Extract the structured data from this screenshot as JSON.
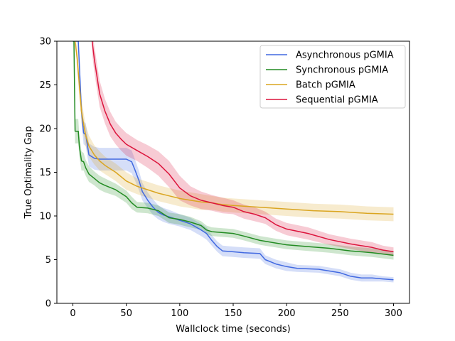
{
  "chart_data": {
    "type": "line",
    "xlabel": "Wallclock time (seconds)",
    "ylabel": "True Optimality Gap",
    "xlim": [
      -15,
      315
    ],
    "ylim": [
      0,
      30
    ],
    "xticks": [
      0,
      50,
      100,
      150,
      200,
      250,
      300
    ],
    "yticks": [
      0,
      5,
      10,
      15,
      20,
      25,
      30
    ],
    "grid": false,
    "legend_position": "top-right",
    "shaded_bands": true,
    "series": [
      {
        "name": "Asynchronous pGMIA",
        "color": "#4169E1",
        "x": [
          0,
          2,
          5,
          8,
          10,
          12,
          15,
          20,
          25,
          30,
          40,
          50,
          55,
          58,
          62,
          65,
          70,
          75,
          80,
          85,
          90,
          100,
          110,
          120,
          125,
          130,
          135,
          140,
          150,
          160,
          175,
          180,
          190,
          200,
          210,
          230,
          250,
          260,
          270,
          280,
          290,
          300
        ],
        "y": [
          30,
          30,
          30,
          22,
          19.5,
          19.3,
          17,
          16.6,
          16.5,
          16.5,
          16.5,
          16.5,
          16.2,
          15.3,
          14,
          12.8,
          11.8,
          11,
          10.4,
          10.1,
          9.9,
          9.5,
          9.1,
          8.4,
          8,
          7.2,
          6.5,
          6,
          5.9,
          5.8,
          5.7,
          5,
          4.5,
          4.2,
          4,
          3.9,
          3.5,
          3.1,
          2.9,
          2.9,
          2.8,
          2.7
        ],
        "spread": [
          0,
          0,
          0,
          1.2,
          1.3,
          1.3,
          1.3,
          1.3,
          1.3,
          1.3,
          1.3,
          1.3,
          1.3,
          1.2,
          1.1,
          1.0,
          0.9,
          0.9,
          0.8,
          0.8,
          0.8,
          0.7,
          0.7,
          0.7,
          0.7,
          0.6,
          0.6,
          0.6,
          0.6,
          0.6,
          0.6,
          0.5,
          0.5,
          0.5,
          0.4,
          0.4,
          0.4,
          0.4,
          0.4,
          0.4,
          0.3,
          0.3
        ]
      },
      {
        "name": "Synchronous pGMIA",
        "color": "#228B22",
        "x": [
          0,
          1,
          2,
          5,
          6,
          8,
          10,
          12,
          15,
          20,
          25,
          30,
          40,
          50,
          55,
          60,
          70,
          80,
          90,
          100,
          110,
          120,
          125,
          130,
          140,
          150,
          160,
          175,
          185,
          200,
          220,
          240,
          260,
          280,
          300
        ],
        "y": [
          30,
          30,
          19.7,
          19.7,
          18,
          16.3,
          16.2,
          15.5,
          14.8,
          14.3,
          13.8,
          13.5,
          13,
          12.2,
          11.5,
          11,
          10.9,
          10.6,
          9.8,
          9.6,
          9.3,
          8.9,
          8.4,
          8.2,
          8.1,
          8,
          7.7,
          7.2,
          7,
          6.7,
          6.5,
          6.3,
          6,
          5.8,
          5.5
        ],
        "spread": [
          0,
          0,
          1.4,
          1.4,
          1.2,
          1.1,
          1.0,
          0.9,
          0.9,
          0.8,
          0.8,
          0.8,
          0.7,
          0.7,
          0.7,
          0.6,
          0.6,
          0.6,
          0.6,
          0.6,
          0.6,
          0.5,
          0.5,
          0.5,
          0.5,
          0.5,
          0.5,
          0.5,
          0.5,
          0.5,
          0.5,
          0.5,
          0.5,
          0.5,
          0.5
        ]
      },
      {
        "name": "Batch pGMIA",
        "color": "#DAA520",
        "x": [
          2,
          4,
          6,
          8,
          10,
          12,
          15,
          20,
          25,
          30,
          40,
          50,
          60,
          70,
          80,
          90,
          100,
          110,
          120,
          130,
          140,
          150,
          175,
          200,
          225,
          250,
          275,
          300
        ],
        "y": [
          30,
          28,
          25,
          22,
          20.5,
          19.2,
          18,
          17,
          16.3,
          15.8,
          15,
          14,
          13.4,
          13,
          12.6,
          12.3,
          12,
          11.8,
          11.6,
          11.5,
          11.3,
          11.2,
          11,
          10.8,
          10.6,
          10.5,
          10.3,
          10.2
        ],
        "spread": [
          0,
          1.5,
          1.5,
          1.3,
          1.3,
          1.2,
          1.2,
          1.1,
          1.1,
          1.0,
          1.0,
          1.0,
          0.9,
          0.9,
          0.9,
          0.9,
          0.9,
          0.9,
          0.9,
          0.8,
          0.8,
          0.8,
          0.8,
          0.8,
          0.8,
          0.8,
          0.8,
          0.8
        ]
      },
      {
        "name": "Sequential pGMIA",
        "color": "#DC143C",
        "x": [
          18,
          20,
          25,
          30,
          35,
          40,
          45,
          50,
          60,
          70,
          80,
          90,
          100,
          110,
          120,
          130,
          140,
          150,
          160,
          170,
          180,
          190,
          200,
          220,
          240,
          260,
          280,
          290,
          300
        ],
        "y": [
          30,
          28,
          24,
          22,
          20.5,
          19.5,
          18.8,
          18.2,
          17.5,
          16.8,
          16,
          14.8,
          13.2,
          12.3,
          11.8,
          11.5,
          11.2,
          11,
          10.5,
          10.2,
          9.8,
          9,
          8.5,
          8,
          7.3,
          6.8,
          6.4,
          6.1,
          5.9
        ],
        "spread": [
          1.5,
          1.5,
          1.5,
          1.4,
          1.4,
          1.3,
          1.3,
          1.3,
          1.2,
          1.3,
          1.4,
          1.5,
          1.4,
          1.1,
          1.0,
          0.9,
          0.9,
          0.8,
          0.8,
          0.8,
          0.7,
          0.7,
          0.7,
          0.7,
          0.6,
          0.6,
          0.6,
          0.5,
          0.5
        ]
      }
    ]
  }
}
